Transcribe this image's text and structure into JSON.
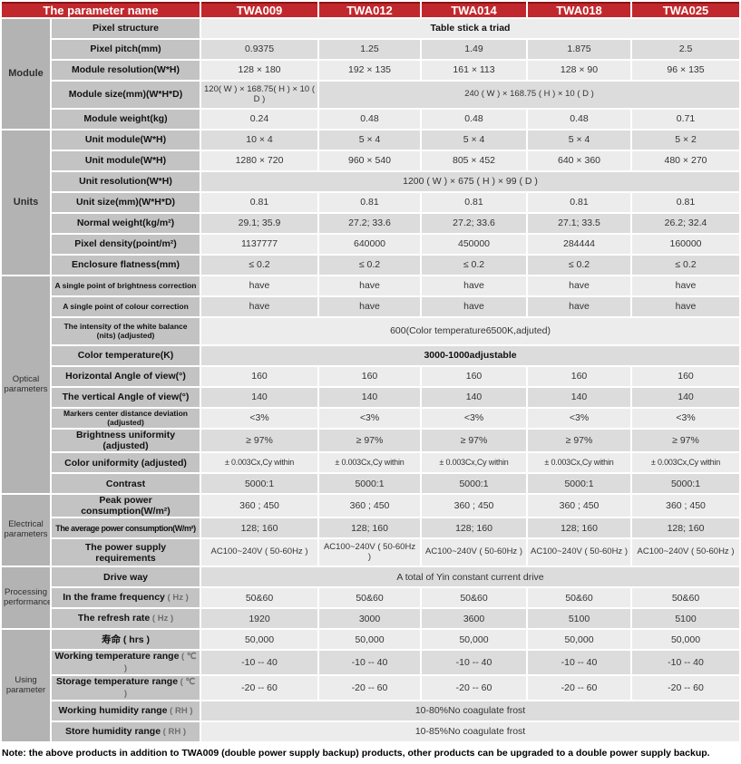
{
  "theme": {
    "header_red": "#c1282d",
    "header_red_dark_border": "#871417",
    "group_column_gray": "#b3b3b3",
    "param_column_gray": "#c3c3c3",
    "row_light": "#ececec",
    "row_dark": "#dcdcdc"
  },
  "header": {
    "param_col": "The parameter name",
    "models": [
      "TWA009",
      "TWA012",
      "TWA014",
      "TWA018",
      "TWA025"
    ]
  },
  "rows": [
    {
      "group": "Module",
      "group_rows": 5,
      "group_bold": true,
      "label": "Pixel structure",
      "value": "Table stick a triad",
      "bold": true
    },
    {
      "label": "Pixel pitch(mm)",
      "values": [
        "0.9375",
        "1.25",
        "1.49",
        "1.875",
        "2.5"
      ]
    },
    {
      "label": "Module resolution(W*H)",
      "values": [
        "128 × 180",
        "192 × 135",
        "161 × 113",
        "128 × 90",
        "96 × 135"
      ]
    },
    {
      "label": "Module size(mm)(W*H*D)",
      "tall": true,
      "v10": true,
      "first": "120( W ) × 168.75( H ) × 10 ( D )",
      "rest": "240 ( W )  × 168.75 ( H )  × 10 ( D )"
    },
    {
      "label": "Module weight(kg)",
      "values": [
        "0.24",
        "0.48",
        "0.48",
        "0.48",
        "0.71"
      ]
    },
    {
      "group": "Units",
      "group_rows": 7,
      "group_bold": true,
      "label": "Unit module(W*H)",
      "values": [
        "10 × 4",
        "5 × 4",
        "5 × 4",
        "5 × 4",
        "5 × 2"
      ]
    },
    {
      "label": "Unit module(W*H)",
      "values": [
        "1280 × 720",
        "960 × 540",
        "805 × 452",
        "640 × 360",
        "480 × 270"
      ]
    },
    {
      "label": "Unit resolution(W*H)",
      "value": "1200 ( W )  × 675 ( H )  × 99 ( D )"
    },
    {
      "label": "Unit size(mm)(W*H*D)",
      "values": [
        "0.81",
        "0.81",
        "0.81",
        "0.81",
        "0.81"
      ]
    },
    {
      "label": "Normal weight(kg/m²)",
      "values": [
        "29.1;  35.9",
        "27.2;  33.6",
        "27.2;  33.6",
        "27.1;  33.5",
        "26.2;  32.4"
      ]
    },
    {
      "label": "Pixel density(point/m²)",
      "values": [
        "1137777",
        "640000",
        "450000",
        "284444",
        "160000"
      ]
    },
    {
      "label": "Enclosure flatness(mm)",
      "values": [
        "≤ 0.2",
        "≤ 0.2",
        "≤ 0.2",
        "≤ 0.2",
        "≤ 0.2"
      ]
    },
    {
      "group": "Optical parameters",
      "group_rows": 10,
      "label": "A single point of brightness correction",
      "small": true,
      "values": [
        "have",
        "have",
        "have",
        "have",
        "have"
      ]
    },
    {
      "label": "A single point of colour correction",
      "small": true,
      "values": [
        "have",
        "have",
        "have",
        "have",
        "have"
      ]
    },
    {
      "label": "The intensity of the white balance (nits) (adjusted)",
      "small": true,
      "tall": true,
      "value": "600(Color temperature6500K,adjuted)"
    },
    {
      "label": "Color temperature(K)",
      "value": "3000-1000adjustable",
      "bold": true
    },
    {
      "label": "Horizontal Angle of view(°)",
      "values": [
        "160",
        "160",
        "160",
        "160",
        "160"
      ]
    },
    {
      "label": "The vertical Angle of view(°)",
      "values": [
        "140",
        "140",
        "140",
        "140",
        "140"
      ]
    },
    {
      "label": "Markers center distance deviation (adjusted)",
      "small": true,
      "values": [
        "<3%",
        "<3%",
        "<3%",
        "<3%",
        "<3%"
      ]
    },
    {
      "label": "Brightness uniformity (adjusted)",
      "values": [
        "≥ 97%",
        "≥ 97%",
        "≥ 97%",
        "≥ 97%",
        "≥ 97%"
      ]
    },
    {
      "label": "Color uniformity (adjusted)",
      "v9": true,
      "values": [
        "± 0.003Cx,Cy within",
        "± 0.003Cx,Cy within",
        "± 0.003Cx,Cy within",
        "± 0.003Cx,Cy within",
        "± 0.003Cx,Cy within"
      ]
    },
    {
      "label": "Contrast",
      "values": [
        "5000:1",
        "5000:1",
        "5000:1",
        "5000:1",
        "5000:1"
      ]
    },
    {
      "group": "Electrical parameters",
      "group_rows": 3,
      "label": "Peak power consumption(W/m²)",
      "values": [
        "360 ;  450",
        "360 ;  450",
        "360 ;  450",
        "360 ;  450",
        "360 ;  450"
      ]
    },
    {
      "label": "The average power consumption(W/m²)",
      "cond": true,
      "values": [
        "128;  160",
        "128;  160",
        "128;  160",
        "128;  160",
        "128;  160"
      ]
    },
    {
      "label": "The power supply requirements",
      "tall": true,
      "v10": true,
      "values": [
        "AC100~240V ( 50-60Hz )",
        "AC100~240V ( 50-60Hz )",
        "AC100~240V ( 50-60Hz )",
        "AC100~240V ( 50-60Hz )",
        "AC100~240V ( 50-60Hz )"
      ]
    },
    {
      "group": "Processing performance",
      "group_rows": 3,
      "label": "Drive way",
      "value": "A total of Yin constant current drive"
    },
    {
      "label": "In the frame frequency",
      "unit": " ( Hz )",
      "values": [
        "50&60",
        "50&60",
        "50&60",
        "50&60",
        "50&60"
      ]
    },
    {
      "label": "The refresh rate",
      "unit": " ( Hz )",
      "values": [
        "1920",
        "3000",
        "3600",
        "5100",
        "5100"
      ]
    },
    {
      "group": "Using parameter",
      "group_rows": 5,
      "label": "寿命 ( hrs )",
      "values": [
        "50,000",
        "50,000",
        "50,000",
        "50,000",
        "50,000"
      ]
    },
    {
      "label": "Working temperature range",
      "unit": " ( ℃ )",
      "values": [
        "-10 -- 40",
        "-10 -- 40",
        "-10 -- 40",
        "-10 -- 40",
        "-10 -- 40"
      ]
    },
    {
      "label": "Storage temperature range",
      "unit": " ( ℃ )",
      "values": [
        "-20 -- 60",
        "-20 -- 60",
        "-20 -- 60",
        "-20 -- 60",
        "-20 -- 60"
      ]
    },
    {
      "label": "Working humidity range",
      "unit": " ( RH )",
      "value": "10-80%No coagulate frost"
    },
    {
      "label": "Store humidity range",
      "unit": " ( RH )",
      "value": "10-85%No coagulate frost"
    }
  ],
  "note": "Note: the above products in addition to TWA009 (double power supply backup) products, other products can be upgraded to a double power supply backup."
}
